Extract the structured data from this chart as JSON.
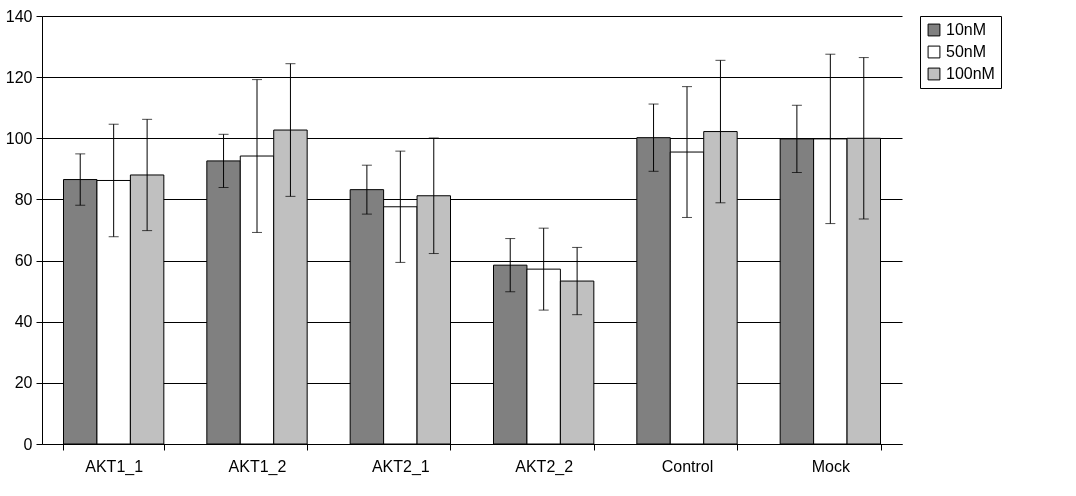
{
  "chart_data": {
    "type": "bar",
    "categories": [
      "AKT1_1",
      "AKT1_2",
      "AKT2_1",
      "AKT2_2",
      "Control",
      "Mock"
    ],
    "series": [
      {
        "name": "10nM",
        "color": "#808080",
        "values": [
          86.5,
          92.6,
          83.2,
          58.5,
          100.2,
          99.8
        ],
        "errors": [
          8.4,
          8.7,
          8,
          8.7,
          11,
          11
        ]
      },
      {
        "name": "50nM",
        "color": "#ffffff",
        "values": [
          86.2,
          94.2,
          77.6,
          57.2,
          95.5,
          99.8
        ],
        "errors": [
          18.4,
          25,
          18.2,
          13.4,
          21.4,
          27.7
        ]
      },
      {
        "name": "100nM",
        "color": "#c0c0c0",
        "values": [
          88,
          102.7,
          81.2,
          53.3,
          102.2,
          100
        ],
        "errors": [
          18.2,
          21.7,
          18.9,
          11,
          23.3,
          26.4
        ]
      }
    ],
    "ylim": [
      0,
      140
    ],
    "yticks": [
      0,
      20,
      40,
      60,
      80,
      100,
      120,
      140
    ],
    "grid": "y",
    "legend": "right"
  }
}
